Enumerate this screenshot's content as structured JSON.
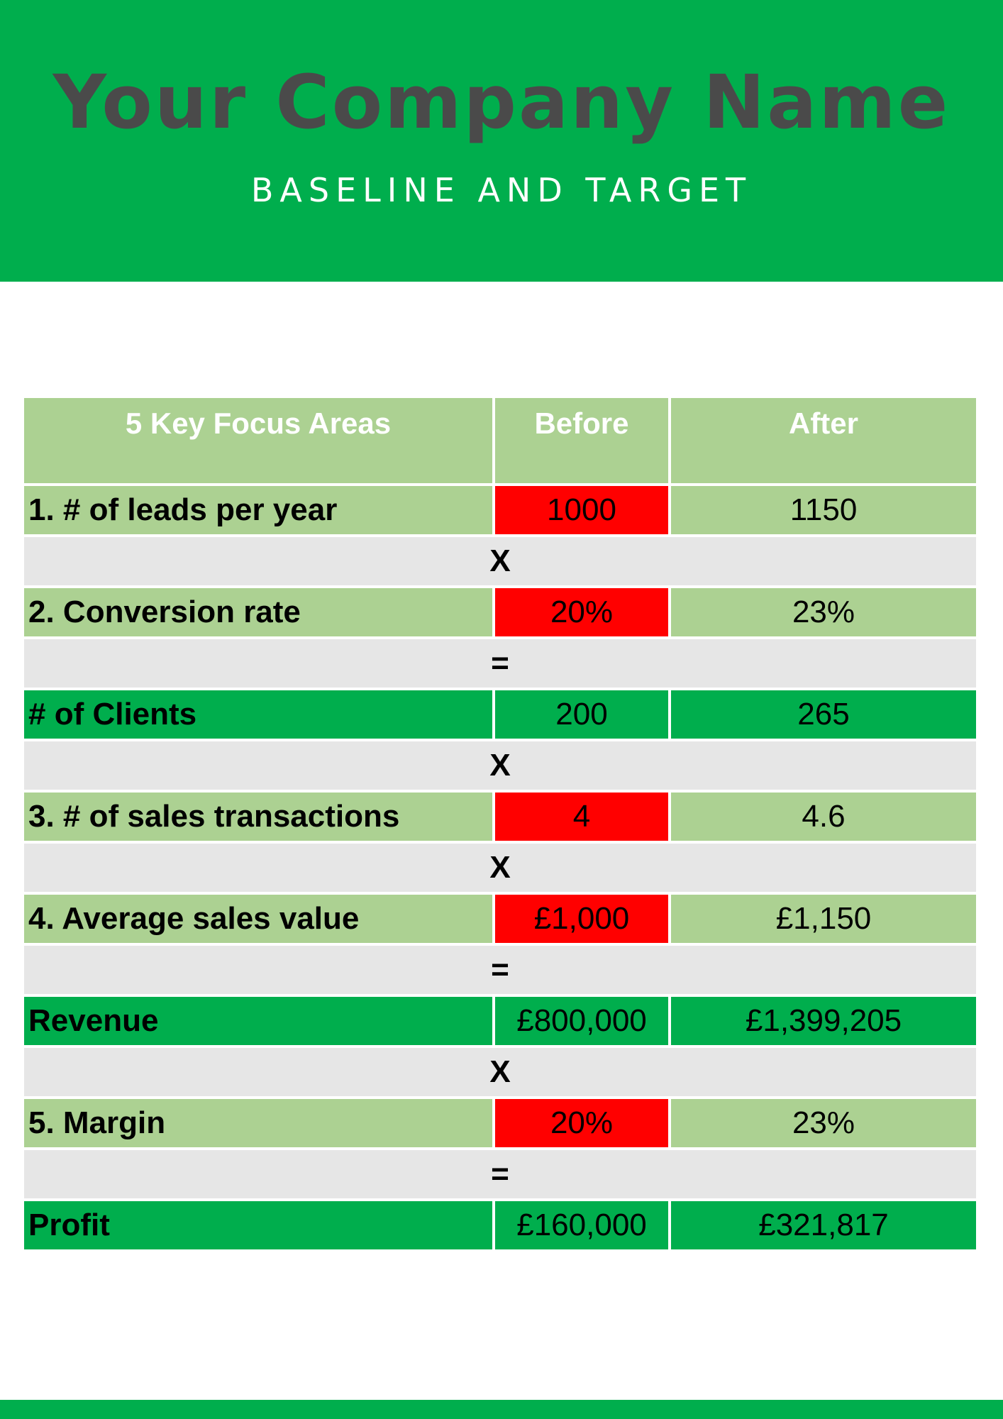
{
  "header": {
    "company_name": "Your Company Name",
    "subtitle": "BASELINE AND TARGET"
  },
  "colors": {
    "brand_green": "#00ae4d",
    "light_green": "#acd192",
    "highlight_red": "#ff0000",
    "operator_grey": "#e6e6e6",
    "title_grey": "#4a4a4a"
  },
  "table": {
    "columns": [
      "5 Key Focus Areas",
      "Before",
      "After"
    ],
    "rows": [
      {
        "type": "metric",
        "label": "1. # of leads per year",
        "before": "1000",
        "after": "1150"
      },
      {
        "type": "op",
        "symbol": "X"
      },
      {
        "type": "metric",
        "label": "2. Conversion rate",
        "before": "20%",
        "after": "23%"
      },
      {
        "type": "op",
        "symbol": "="
      },
      {
        "type": "result",
        "label": "# of Clients",
        "before": "200",
        "after": "265"
      },
      {
        "type": "op",
        "symbol": "X"
      },
      {
        "type": "metric",
        "label": "3. # of sales transactions",
        "before": "4",
        "after": "4.6"
      },
      {
        "type": "op",
        "symbol": "X"
      },
      {
        "type": "metric",
        "label": "4. Average sales value",
        "before": "£1,000",
        "after": "£1,150"
      },
      {
        "type": "op",
        "symbol": "="
      },
      {
        "type": "result",
        "label": "Revenue",
        "before": "£800,000",
        "after": "£1,399,205"
      },
      {
        "type": "op",
        "symbol": "X"
      },
      {
        "type": "metric",
        "label": "5. Margin",
        "before": "20%",
        "after": "23%"
      },
      {
        "type": "op",
        "symbol": "="
      },
      {
        "type": "result",
        "label": "Profit",
        "before": "£160,000",
        "after": "£321,817"
      }
    ]
  }
}
